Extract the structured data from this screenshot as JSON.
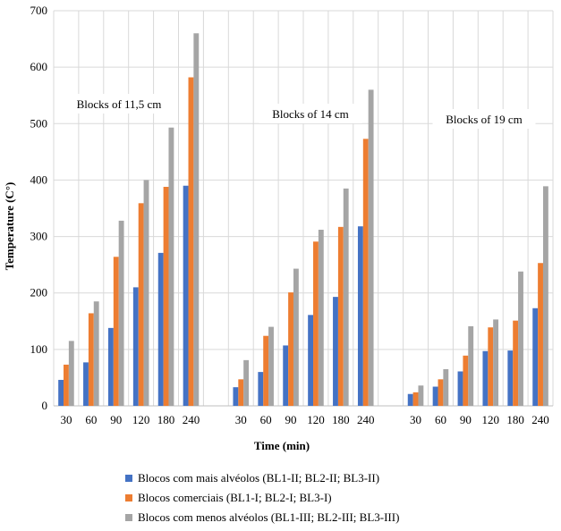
{
  "chart_data": {
    "type": "bar",
    "title": "",
    "xlabel": "Time (min)",
    "ylabel": "Temperature (C°)",
    "ylim": [
      0,
      700
    ],
    "yticks": [
      0,
      100,
      200,
      300,
      400,
      500,
      600,
      700
    ],
    "grid": true,
    "legend_position": "bottom",
    "groups": [
      {
        "label": "Blocks of 11,5 cm",
        "categories": [
          "30",
          "60",
          "90",
          "120",
          "180",
          "240"
        ],
        "values": [
          [
            46,
            77,
            138,
            210,
            271,
            390
          ],
          [
            73,
            164,
            264,
            359,
            388,
            582
          ],
          [
            115,
            185,
            328,
            400,
            493,
            660
          ]
        ]
      },
      {
        "label": "Blocks of 14 cm",
        "categories": [
          "30",
          "60",
          "90",
          "120",
          "180",
          "240"
        ],
        "values": [
          [
            33,
            60,
            107,
            161,
            193,
            318
          ],
          [
            47,
            124,
            201,
            291,
            317,
            473
          ],
          [
            81,
            140,
            243,
            312,
            385,
            560
          ]
        ]
      },
      {
        "label": "Blocks of 19 cm",
        "categories": [
          "30",
          "60",
          "90",
          "120",
          "180",
          "240"
        ],
        "values": [
          [
            21,
            34,
            61,
            97,
            98,
            173
          ],
          [
            24,
            47,
            89,
            139,
            151,
            253
          ],
          [
            36,
            65,
            141,
            153,
            238,
            389
          ]
        ]
      }
    ],
    "series": [
      {
        "name": "Blocos com mais alvéolos (BL1-II; BL2-II; BL3-II)",
        "color": "#4472c4"
      },
      {
        "name": "Blocos comerciais (BL1-I; BL2-I; BL3-I)",
        "color": "#ed7d31"
      },
      {
        "name": "Blocos com menos alvéolos (BL1-III; BL2-III; BL3-III)",
        "color": "#a5a5a5"
      }
    ]
  }
}
